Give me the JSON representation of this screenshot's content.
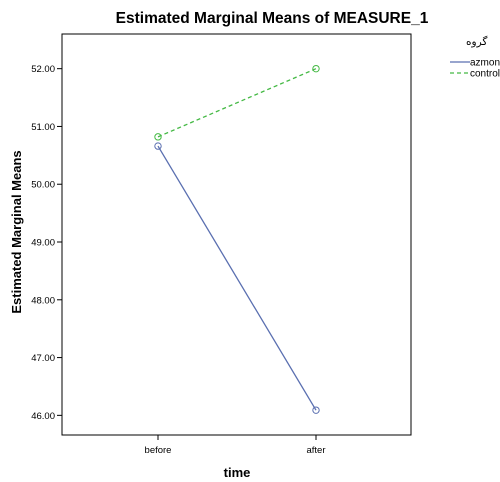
{
  "chart_data": {
    "type": "line",
    "title": "Estimated Marginal Means of MEASURE_1",
    "xlabel": "time",
    "ylabel": "Estimated Marginal Means",
    "categories": [
      "before",
      "after"
    ],
    "ylim": [
      45.66,
      52.6
    ],
    "yticks": [
      46,
      47,
      48,
      49,
      50,
      51,
      52
    ],
    "ytick_labels": [
      "46.00",
      "47.00",
      "48.00",
      "49.00",
      "50.00",
      "51.00",
      "52.00"
    ],
    "legend": {
      "title": "گروه",
      "placement": "top-right, outside plot"
    },
    "series": [
      {
        "name": "azmon",
        "values": [
          50.66,
          46.09
        ],
        "color": "#5a6fb0",
        "dash": "solid",
        "marker": "open-circle"
      },
      {
        "name": "control",
        "values": [
          50.82,
          52.0
        ],
        "color": "#44b944",
        "dash": "dashed",
        "marker": "open-circle"
      }
    ],
    "grid": false
  }
}
